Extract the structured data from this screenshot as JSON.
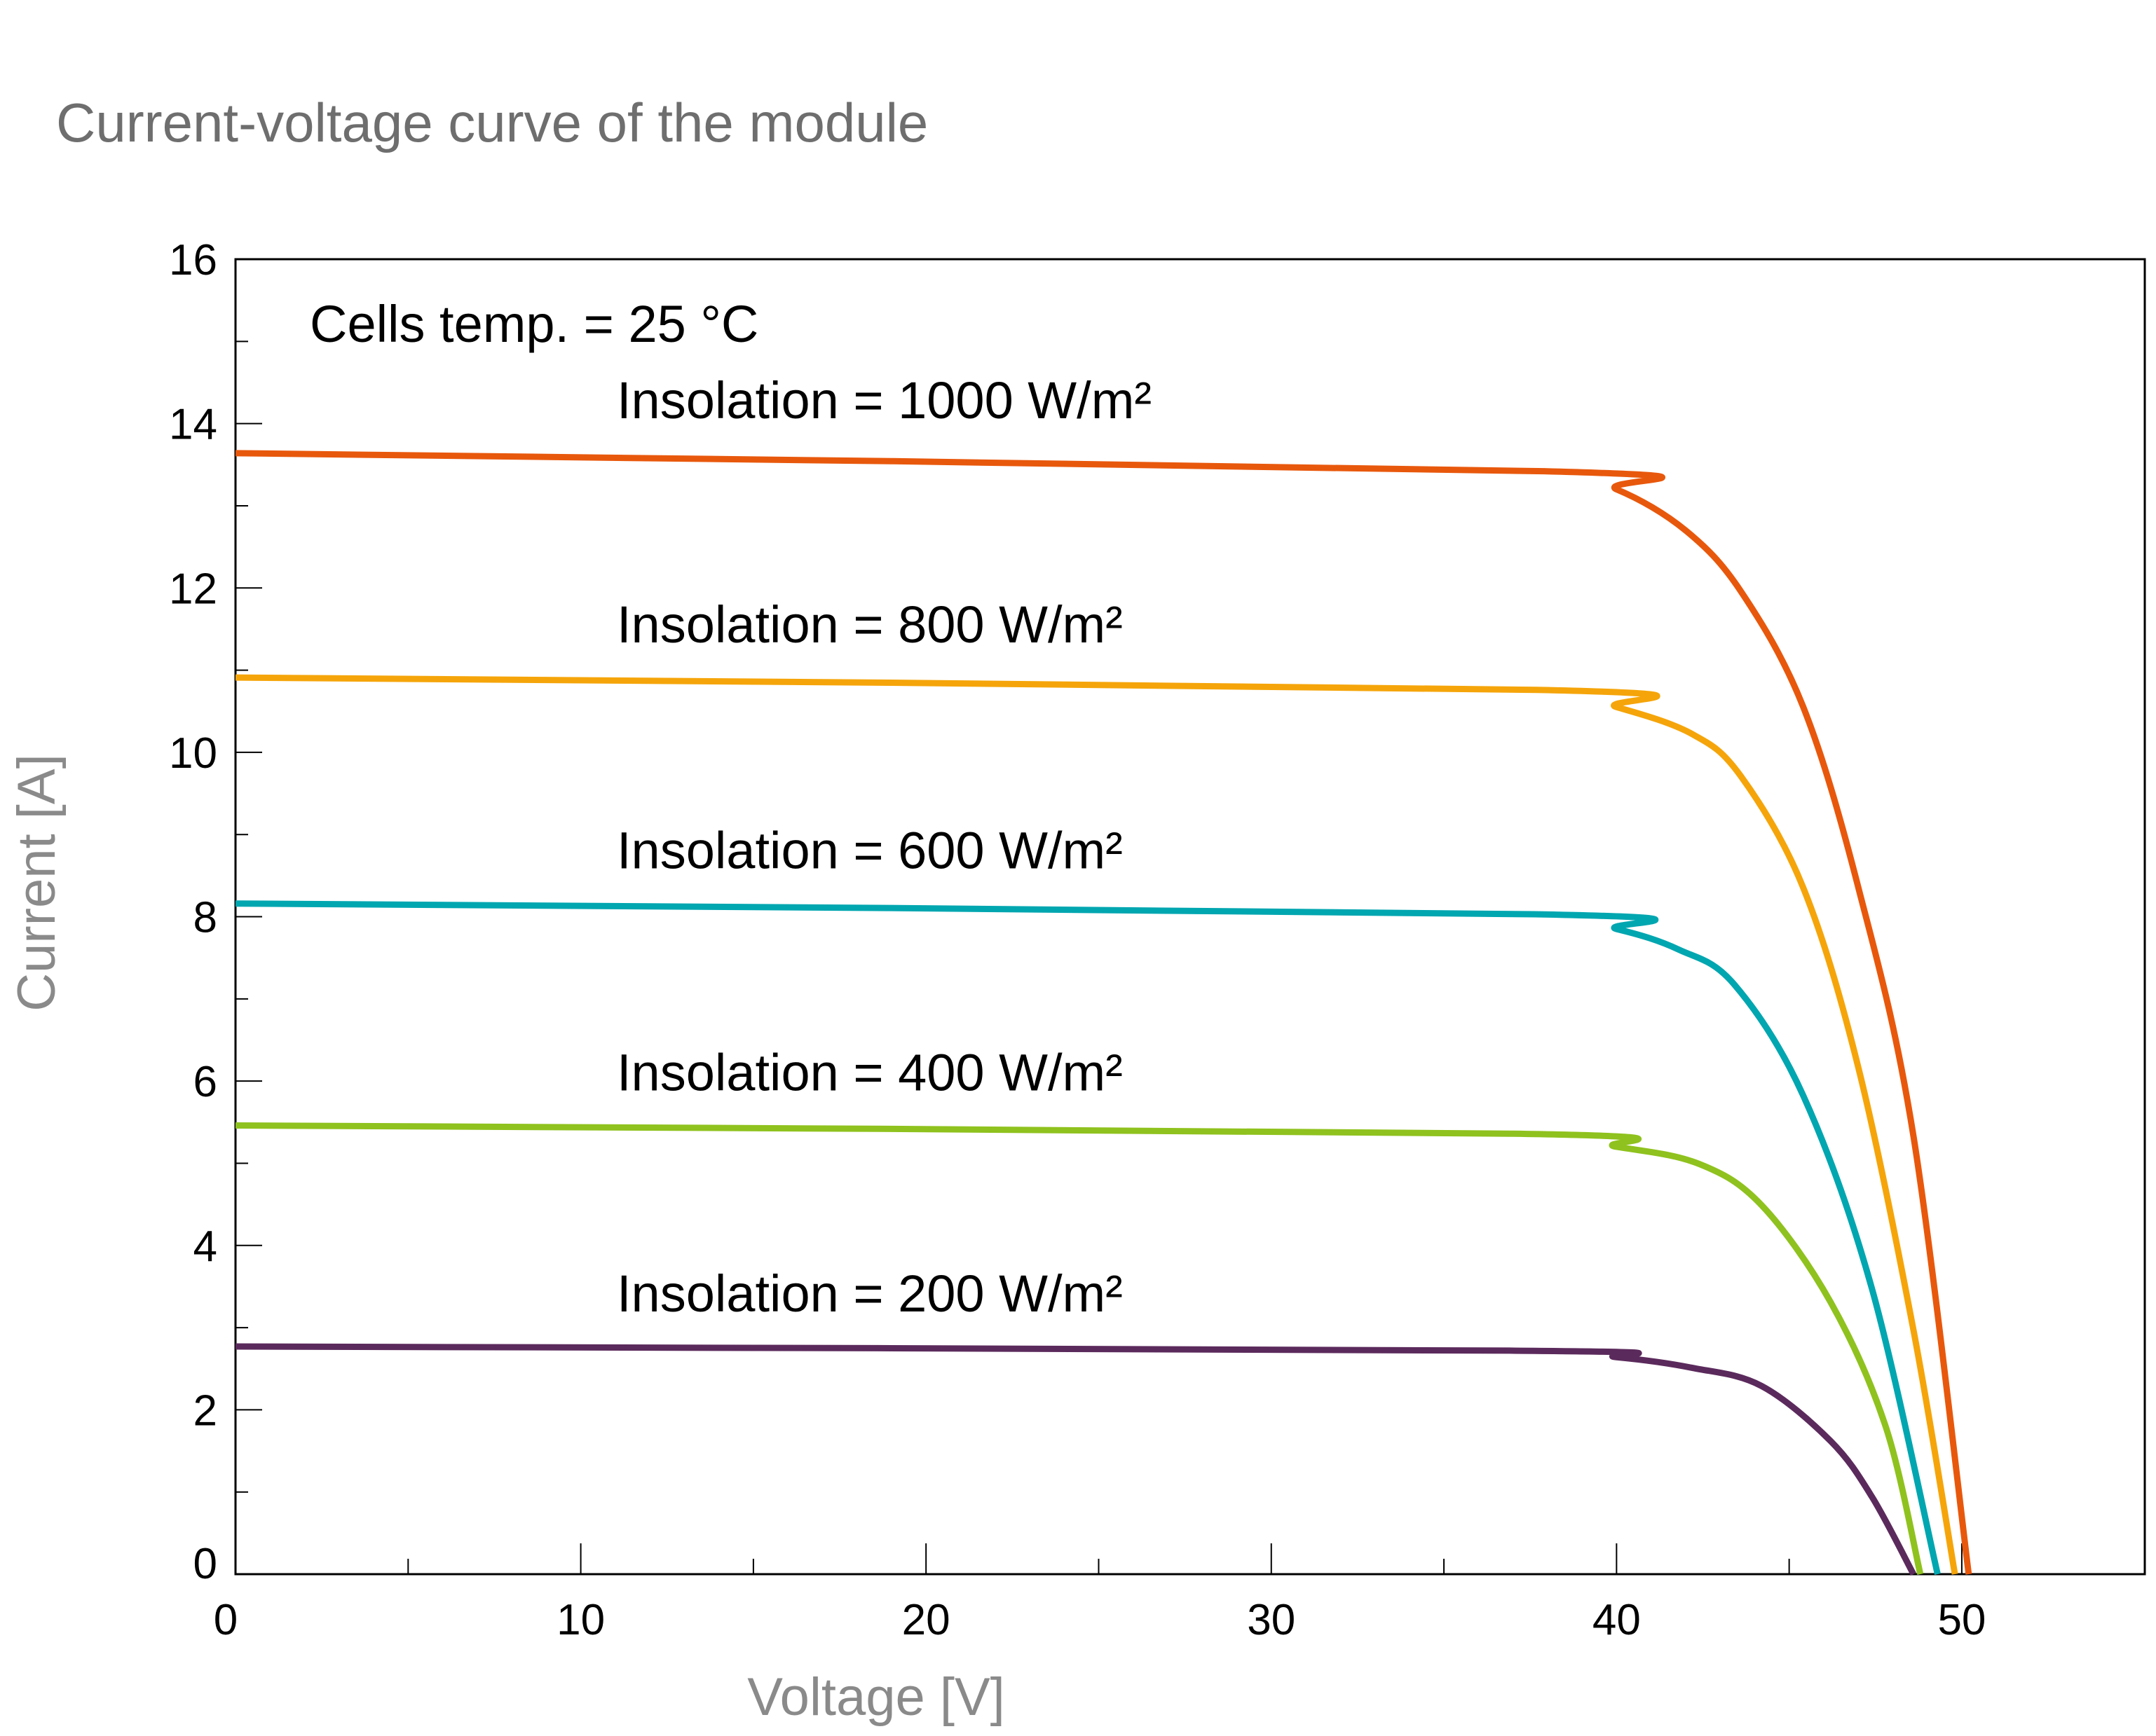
{
  "chart_data": {
    "type": "line",
    "title": "Current-voltage curve of the module",
    "xlabel": "Voltage [V]",
    "ylabel": "Current [A]",
    "xlim": [
      0,
      55.3
    ],
    "ylim": [
      0,
      16
    ],
    "xticks": [
      0,
      10,
      20,
      30,
      40,
      50
    ],
    "xminor_ticks": [
      5,
      15,
      25,
      35,
      45
    ],
    "yticks": [
      0,
      2,
      4,
      6,
      8,
      10,
      12,
      14,
      16
    ],
    "yminor_ticks": [
      1,
      3,
      5,
      7,
      9,
      11,
      13,
      15
    ],
    "grid": false,
    "legend": "none",
    "annotation": "Cells temp. = 25 °C",
    "series": [
      {
        "name": "Insolation = 1000 W/m²",
        "color": "#e8580c",
        "x": [
          0,
          37.9,
          40,
          42,
          43.6,
          45.4,
          47.0,
          48.6,
          50.2
        ],
        "y": [
          13.64,
          13.42,
          13.2,
          12.7,
          11.96,
          10.56,
          8.36,
          5.33,
          0
        ]
      },
      {
        "name": "Insolation = 800 W/m²",
        "color": "#f5a50a",
        "x": [
          0,
          37.7,
          40,
          42.2,
          43.6,
          45.4,
          47.0,
          48.6,
          49.8
        ],
        "y": [
          10.91,
          10.76,
          10.55,
          10.22,
          9.71,
          8.36,
          6.17,
          2.97,
          0
        ]
      },
      {
        "name": "Insolation = 600 W/m²",
        "color": "#00a6b0",
        "x": [
          0,
          37.6,
          40,
          41.8,
          43.4,
          45.4,
          47.4,
          49.3
        ],
        "y": [
          8.16,
          8.03,
          7.85,
          7.6,
          7.18,
          5.83,
          3.47,
          0
        ]
      },
      {
        "name": "Insolation = 400 W/m²",
        "color": "#8fc21e",
        "x": [
          0,
          36.9,
          40,
          42.4,
          44.2,
          46.2,
          47.8,
          48.8
        ],
        "y": [
          5.46,
          5.36,
          5.2,
          4.99,
          4.49,
          3.31,
          1.79,
          0
        ]
      },
      {
        "name": "Insolation = 200 W/m²",
        "color": "#5b2a5c",
        "x": [
          0,
          36.9,
          40,
          42.2,
          44.2,
          46.2,
          47.4,
          48.6
        ],
        "y": [
          2.77,
          2.72,
          2.64,
          2.51,
          2.29,
          1.62,
          0.94,
          0
        ]
      }
    ]
  }
}
